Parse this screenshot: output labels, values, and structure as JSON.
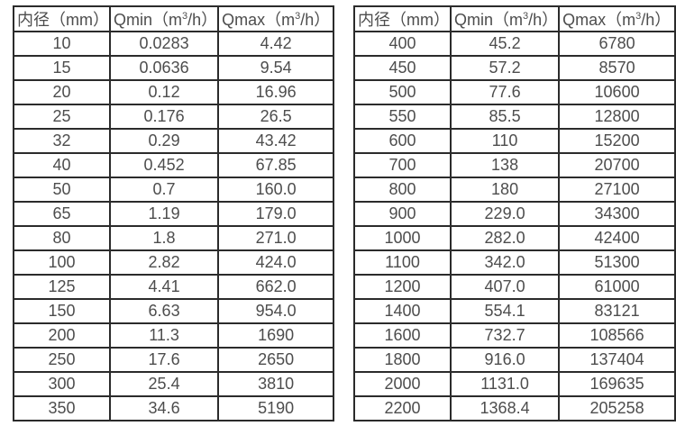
{
  "page": {
    "background": "#ffffff",
    "border_color": "#2b2b2b",
    "text_color": "#4d4d4d"
  },
  "tables": [
    {
      "name": "flow-range-table-small-diameters",
      "headers": [
        {
          "pre": "内径（mm）",
          "sup": "",
          "post": ""
        },
        {
          "pre": "Qmin（m",
          "sup": "3",
          "post": "/h）"
        },
        {
          "pre": "Qmax（m",
          "sup": "3",
          "post": "/h）"
        }
      ],
      "rows": [
        [
          "10",
          "0.0283",
          "4.42"
        ],
        [
          "15",
          "0.0636",
          "9.54"
        ],
        [
          "20",
          "0.12",
          "16.96"
        ],
        [
          "25",
          "0.176",
          "26.5"
        ],
        [
          "32",
          "0.29",
          "43.42"
        ],
        [
          "40",
          "0.452",
          "67.85"
        ],
        [
          "50",
          "0.7",
          "160.0"
        ],
        [
          "65",
          "1.19",
          "179.0"
        ],
        [
          "80",
          "1.8",
          "271.0"
        ],
        [
          "100",
          "2.82",
          "424.0"
        ],
        [
          "125",
          "4.41",
          "662.0"
        ],
        [
          "150",
          "6.63",
          "954.0"
        ],
        [
          "200",
          "11.3",
          "1690"
        ],
        [
          "250",
          "17.6",
          "2650"
        ],
        [
          "300",
          "25.4",
          "3810"
        ],
        [
          "350",
          "34.6",
          "5190"
        ]
      ]
    },
    {
      "name": "flow-range-table-large-diameters",
      "headers": [
        {
          "pre": "内径（mm）",
          "sup": "",
          "post": ""
        },
        {
          "pre": "Qmin（m",
          "sup": "3",
          "post": "/h）"
        },
        {
          "pre": "Qmax（m",
          "sup": "3",
          "post": "/h）"
        }
      ],
      "rows": [
        [
          "400",
          "45.2",
          "6780"
        ],
        [
          "450",
          "57.2",
          "8570"
        ],
        [
          "500",
          "77.6",
          "10600"
        ],
        [
          "550",
          "85.5",
          "12800"
        ],
        [
          "600",
          "110",
          "15200"
        ],
        [
          "700",
          "138",
          "20700"
        ],
        [
          "800",
          "180",
          "27100"
        ],
        [
          "900",
          "229.0",
          "34300"
        ],
        [
          "1000",
          "282.0",
          "42400"
        ],
        [
          "1100",
          "342.0",
          "51300"
        ],
        [
          "1200",
          "407.0",
          "61000"
        ],
        [
          "1400",
          "554.1",
          "83121"
        ],
        [
          "1600",
          "732.7",
          "108566"
        ],
        [
          "1800",
          "916.0",
          "137404"
        ],
        [
          "2000",
          "1131.0",
          "169635"
        ],
        [
          "2200",
          "1368.4",
          "205258"
        ]
      ]
    }
  ],
  "cell_names": [
    "table-cell-diameter",
    "table-cell-qmin",
    "table-cell-qmax"
  ]
}
